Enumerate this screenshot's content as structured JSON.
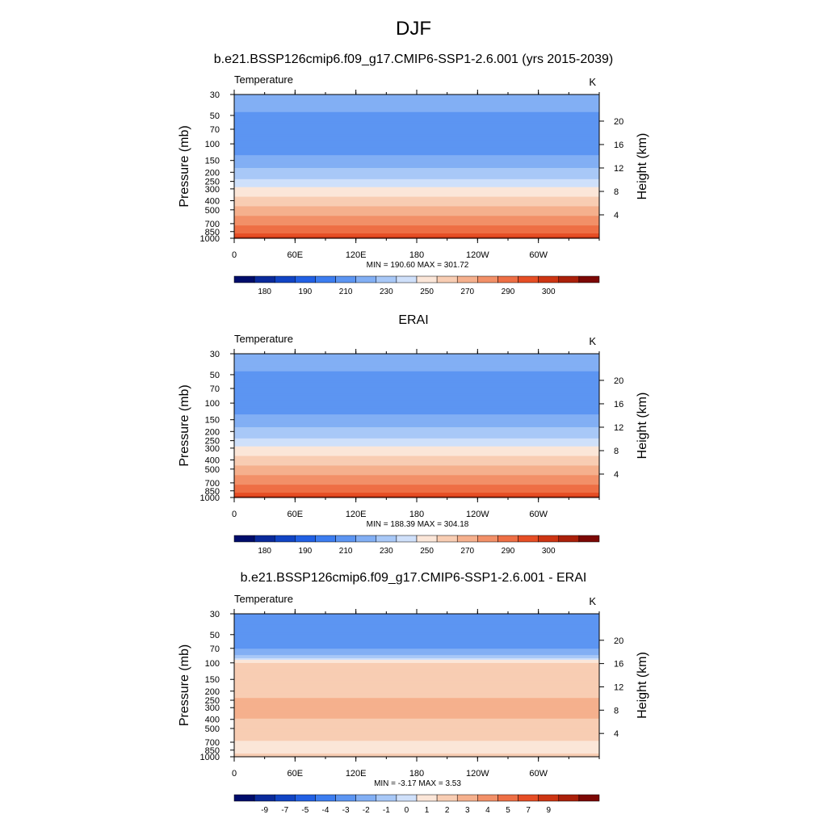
{
  "figure_title": "DJF",
  "chart_data": [
    {
      "type": "heatmap",
      "title": "b.e21.BSSP126cmip6.f09_g17.CMIP6-SSP1-2.6.001 (yrs 2015-2039)",
      "left_label": "Temperature",
      "right_label": "K",
      "ylabel": "Pressure (mb)",
      "ylabel_right": "Height (km)",
      "x_ticks": [
        "0",
        "60E",
        "120E",
        "180",
        "120W",
        "60W"
      ],
      "y_ticks": [
        "30",
        "50",
        "70",
        "100",
        "150",
        "200",
        "250",
        "300",
        "400",
        "500",
        "700",
        "850",
        "1000"
      ],
      "height_ticks": [
        "20",
        "16",
        "12",
        "8",
        "4"
      ],
      "stats": "MIN = 190.60  MAX = 301.72",
      "min": 190.6,
      "max": 301.72,
      "colorbar_labels": [
        "180",
        "190",
        "210",
        "230",
        "250",
        "270",
        "290",
        "300"
      ],
      "profile_levels_mb": [
        30,
        40,
        50,
        70,
        100,
        150,
        200,
        250,
        300,
        400,
        500,
        700,
        850,
        1000
      ],
      "profile_values": [
        220,
        215,
        208,
        203,
        203,
        213,
        223,
        233,
        243,
        253,
        263,
        278,
        288,
        296
      ]
    },
    {
      "type": "heatmap",
      "title": "ERAI",
      "left_label": "Temperature",
      "right_label": "K",
      "ylabel": "Pressure (mb)",
      "ylabel_right": "Height (km)",
      "x_ticks": [
        "0",
        "60E",
        "120E",
        "180",
        "120W",
        "60W"
      ],
      "y_ticks": [
        "30",
        "50",
        "70",
        "100",
        "150",
        "200",
        "250",
        "300",
        "400",
        "500",
        "700",
        "850",
        "1000"
      ],
      "height_ticks": [
        "20",
        "16",
        "12",
        "8",
        "4"
      ],
      "stats": "MIN = 188.39  MAX = 304.18",
      "min": 188.39,
      "max": 304.18,
      "colorbar_labels": [
        "180",
        "190",
        "210",
        "230",
        "250",
        "270",
        "290",
        "300"
      ],
      "profile_levels_mb": [
        30,
        40,
        50,
        70,
        100,
        150,
        200,
        250,
        300,
        400,
        500,
        700,
        850,
        1000
      ],
      "profile_values": [
        220,
        215,
        208,
        203,
        203,
        213,
        223,
        233,
        243,
        253,
        263,
        278,
        288,
        296
      ]
    },
    {
      "type": "heatmap",
      "title": "b.e21.BSSP126cmip6.f09_g17.CMIP6-SSP1-2.6.001 - ERAI",
      "left_label": "Temperature",
      "right_label": "K",
      "ylabel": "Pressure (mb)",
      "ylabel_right": "Height (km)",
      "x_ticks": [
        "0",
        "60E",
        "120E",
        "180",
        "120W",
        "60W"
      ],
      "y_ticks": [
        "30",
        "50",
        "70",
        "100",
        "150",
        "200",
        "250",
        "300",
        "400",
        "500",
        "700",
        "850",
        "1000"
      ],
      "height_ticks": [
        "20",
        "16",
        "12",
        "8",
        "4"
      ],
      "stats": "MIN = -3.17  MAX =  3.53",
      "min": -3.17,
      "max": 3.53,
      "colorbar_labels": [
        "-9",
        "-7",
        "-5",
        "-4",
        "-3",
        "-2",
        "-1",
        "0",
        "1",
        "2",
        "3",
        "4",
        "5",
        "7",
        "9"
      ],
      "profile_levels_mb": [
        30,
        50,
        70,
        100,
        150,
        300,
        500,
        850,
        1000
      ],
      "profile_values": [
        -2.5,
        -2.8,
        -2.2,
        0.5,
        0.8,
        1.1,
        0.9,
        0.2,
        0.8
      ]
    }
  ],
  "palette_abs": [
    "#000d6b",
    "#0a2a9b",
    "#1144c4",
    "#2160e4",
    "#3c7df0",
    "#5c95f2",
    "#82aff4",
    "#a8c8f7",
    "#cfe0fa",
    "#fbe6d8",
    "#f8cdb3",
    "#f5b08d",
    "#f29068",
    "#ee6f45",
    "#e64e25",
    "#cd3513",
    "#aa200a",
    "#7c0805"
  ],
  "palette_diff": [
    "#000d6b",
    "#0a2a9b",
    "#1144c4",
    "#2160e4",
    "#3c7df0",
    "#5c95f2",
    "#82aff4",
    "#a8c8f7",
    "#cfe0fa",
    "#fbe6d8",
    "#f8cdb3",
    "#f5b08d",
    "#f29068",
    "#ee6f45",
    "#e64e25",
    "#cd3513",
    "#aa200a",
    "#7c0805"
  ]
}
